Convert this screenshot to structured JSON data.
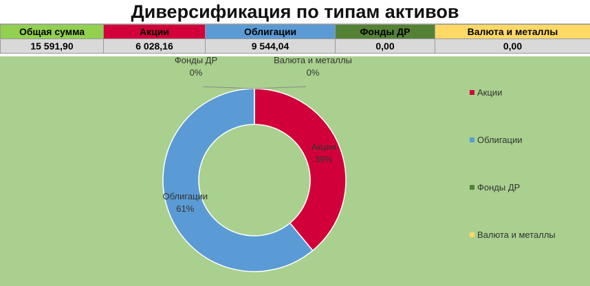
{
  "title": "Диверсификация по типам активов",
  "table": {
    "headers": [
      "Общая сумма",
      "Акции",
      "Облигации",
      "Фонды ДР",
      "Валюта и металлы"
    ],
    "rows": [
      [
        "15 591,90",
        "6 028,16",
        "9 544,04",
        "0,00",
        "0,00"
      ]
    ]
  },
  "chart_data": {
    "type": "donut",
    "categories": [
      "Акции",
      "Облигации",
      "Фонды ДР",
      "Валюта и металлы"
    ],
    "values": [
      39,
      61,
      0,
      0
    ],
    "value_labels": [
      "39%",
      "61%",
      "0%",
      "0%"
    ],
    "colors": [
      "#d2003a",
      "#5b9bd5",
      "#548235",
      "#ffd966"
    ],
    "legend": "right"
  }
}
